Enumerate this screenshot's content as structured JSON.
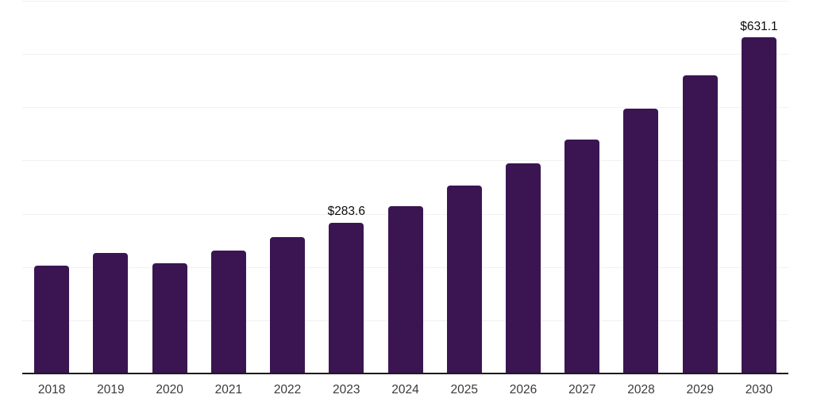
{
  "chart_data": {
    "type": "bar",
    "title": "",
    "xlabel": "",
    "ylabel": "",
    "categories": [
      "2018",
      "2019",
      "2020",
      "2021",
      "2022",
      "2023",
      "2024",
      "2025",
      "2026",
      "2027",
      "2028",
      "2029",
      "2030"
    ],
    "values": [
      202,
      226,
      207,
      231,
      256,
      283.6,
      315,
      353,
      395,
      440,
      497,
      560,
      631.1
    ],
    "data_labels": {
      "2023": "$283.6",
      "2030": "$631.1"
    },
    "ylim": [
      0,
      700
    ],
    "gridline_step": 100,
    "grid": true,
    "legend": false,
    "y_axis_labels_shown": false,
    "colors": {
      "bar": "#3A1552",
      "axis": "#1c1c1c",
      "gridline": "#f1f1f1",
      "tick_label": "#3a3a3a",
      "data_label": "#0b0b0b",
      "background": "#ffffff"
    }
  }
}
